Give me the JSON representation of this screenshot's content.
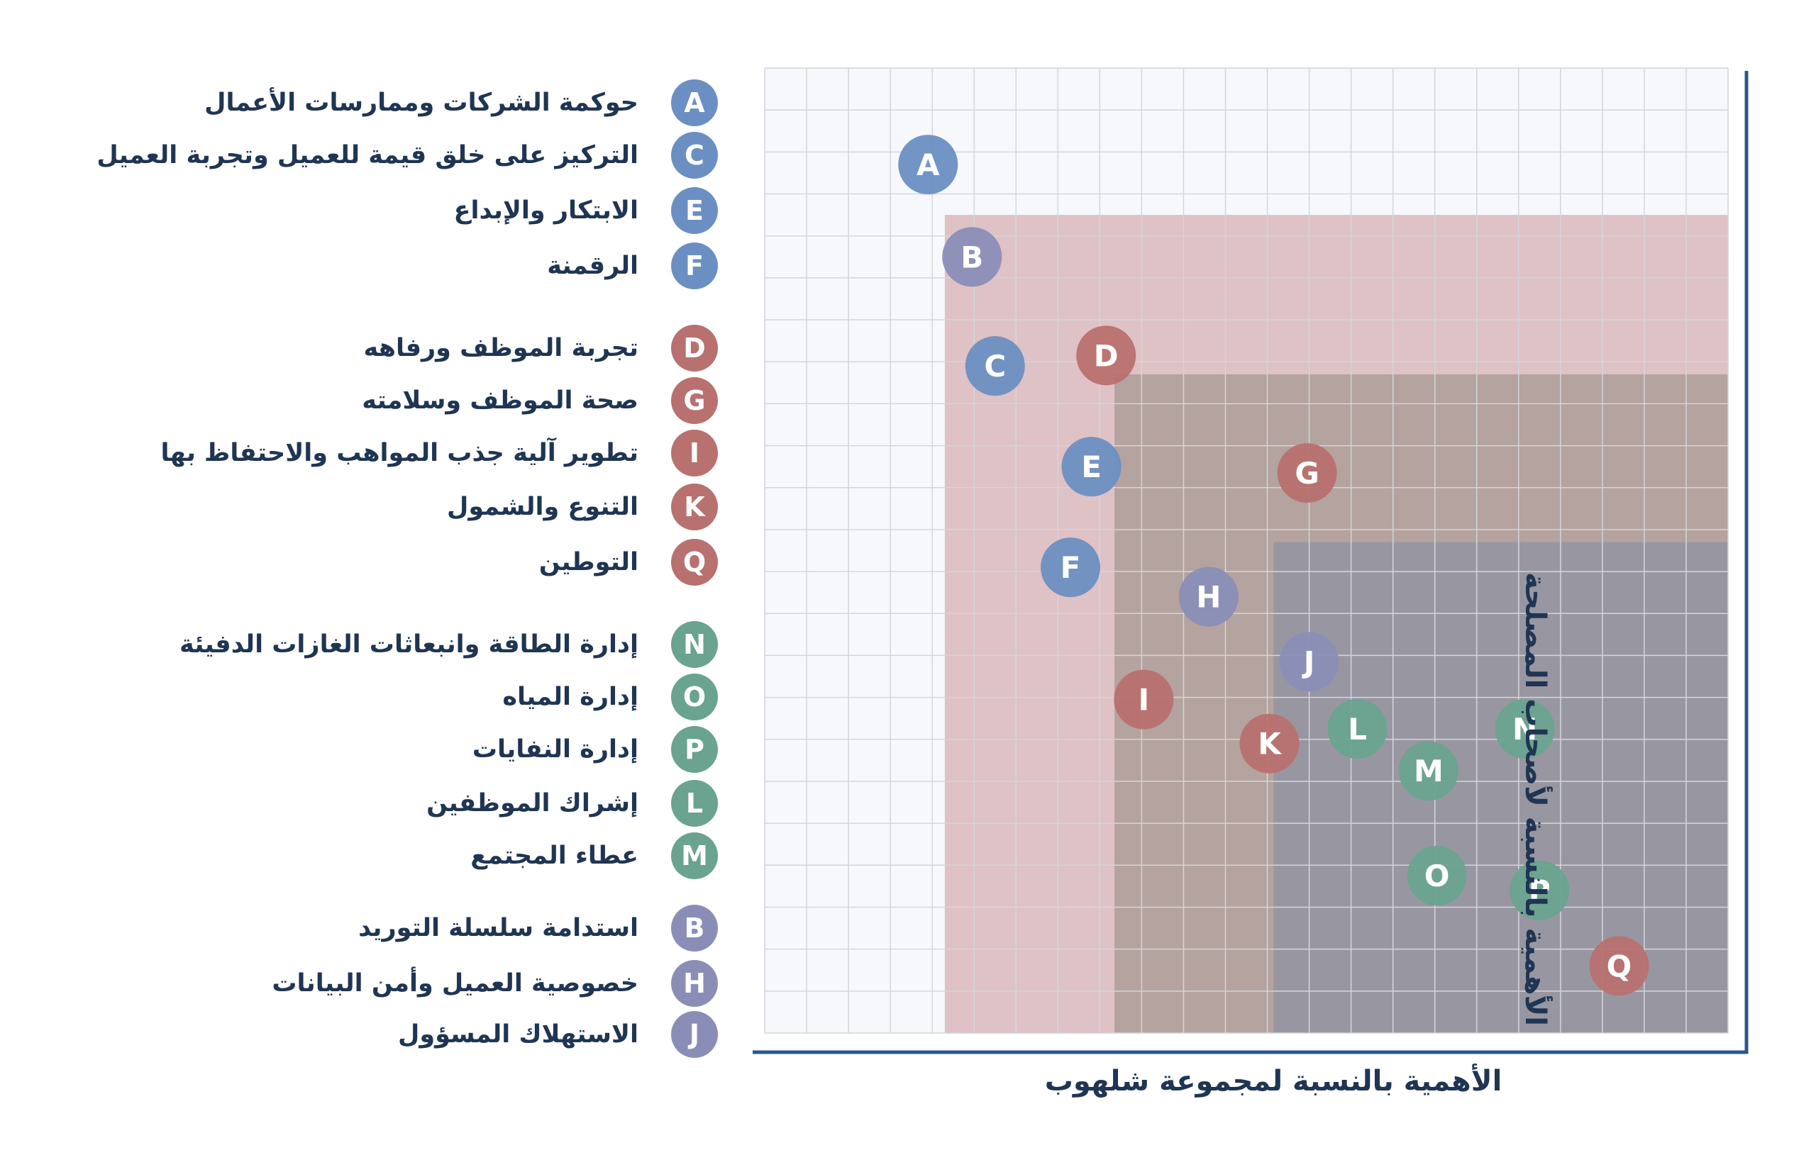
{
  "legend": [
    {
      "letter": "A",
      "label": "حوكمة الشركات وممارسات الأعمال",
      "group": "governance"
    },
    {
      "letter": "C",
      "label": "التركيز على خلق قيمة للعميل وتجربة العميل",
      "group": "governance"
    },
    {
      "letter": "E",
      "label": "الابتكار والإبداع",
      "group": "governance"
    },
    {
      "letter": "F",
      "label": "الرقمنة",
      "group": "governance"
    },
    {
      "letter": "D",
      "label": "تجربة الموظف ورفاهه",
      "group": "people"
    },
    {
      "letter": "G",
      "label": "صحة الموظف وسلامته",
      "group": "people"
    },
    {
      "letter": "I",
      "label": "تطوير آلية جذب المواهب والاحتفاظ بها",
      "group": "people"
    },
    {
      "letter": "K",
      "label": "التنوع والشمول",
      "group": "people"
    },
    {
      "letter": "Q",
      "label": "التوطين",
      "group": "people"
    },
    {
      "letter": "N",
      "label": "إدارة الطاقة وانبعاثات الغازات الدفيئة",
      "group": "environment"
    },
    {
      "letter": "O",
      "label": "إدارة المياه",
      "group": "environment"
    },
    {
      "letter": "P",
      "label": "إدارة النفايات",
      "group": "environment"
    },
    {
      "letter": "L",
      "label": "إشراك الموظفين",
      "group": "environment"
    },
    {
      "letter": "M",
      "label": "عطاء المجتمع",
      "group": "environment"
    },
    {
      "letter": "B",
      "label": "استدامة سلسلة التوريد",
      "group": "supply"
    },
    {
      "letter": "H",
      "label": "خصوصية العميل وأمن البيانات",
      "group": "supply"
    },
    {
      "letter": "J",
      "label": "الاستهلاك المسؤول",
      "group": "supply"
    }
  ],
  "colors": {
    "governance": "#6b8fc2",
    "people": "#b8716f",
    "environment": "#6aa390",
    "supply": "#8a8eb7",
    "zone_low": "#cf9fa0",
    "zone_mid": "#978d84",
    "zone_high": "#8590a3",
    "grid_bg": "#f6f8fc",
    "grid_line": "#d3d6db",
    "axis": "#2e5788",
    "text": "#1f3553"
  },
  "chart_data": {
    "type": "scatter",
    "xlabel": "الأهمية بالنسبة لمجموعة شلهوب",
    "ylabel": "الأهمية بالنسبة لأصحاب المصلحة",
    "xlim": [
      0,
      23
    ],
    "ylim": [
      0,
      23
    ],
    "grid": true,
    "zones": [
      {
        "name": "",
        "x_from": 4.3,
        "y_top": 19.5,
        "color_key": "zone_low"
      },
      {
        "name": "",
        "x_from": 8.35,
        "y_top": 15.7,
        "color_key": "zone_mid"
      },
      {
        "name": "",
        "x_from": 12.15,
        "y_top": 11.7,
        "color_key": "zone_high"
      }
    ],
    "points": [
      {
        "label": "A",
        "x": 3.9,
        "y": 20.7,
        "group": "governance"
      },
      {
        "label": "B",
        "x": 4.95,
        "y": 18.5,
        "group": "supply"
      },
      {
        "label": "C",
        "x": 5.5,
        "y": 15.9,
        "group": "governance"
      },
      {
        "label": "D",
        "x": 8.15,
        "y": 16.15,
        "group": "people"
      },
      {
        "label": "E",
        "x": 7.8,
        "y": 13.5,
        "group": "governance"
      },
      {
        "label": "G",
        "x": 12.95,
        "y": 13.35,
        "group": "people"
      },
      {
        "label": "F",
        "x": 7.3,
        "y": 11.1,
        "group": "governance"
      },
      {
        "label": "H",
        "x": 10.6,
        "y": 10.4,
        "group": "supply"
      },
      {
        "label": "J",
        "x": 13.0,
        "y": 8.85,
        "group": "supply"
      },
      {
        "label": "I",
        "x": 9.05,
        "y": 7.95,
        "group": "people"
      },
      {
        "label": "L",
        "x": 14.15,
        "y": 7.25,
        "group": "environment"
      },
      {
        "label": "N",
        "x": 18.15,
        "y": 7.25,
        "group": "environment"
      },
      {
        "label": "K",
        "x": 12.05,
        "y": 6.9,
        "group": "people"
      },
      {
        "label": "M",
        "x": 15.85,
        "y": 6.25,
        "group": "environment"
      },
      {
        "label": "O",
        "x": 16.05,
        "y": 3.75,
        "group": "environment"
      },
      {
        "label": "P",
        "x": 18.5,
        "y": 3.4,
        "group": "environment"
      },
      {
        "label": "Q",
        "x": 20.4,
        "y": 1.6,
        "group": "people"
      }
    ]
  }
}
